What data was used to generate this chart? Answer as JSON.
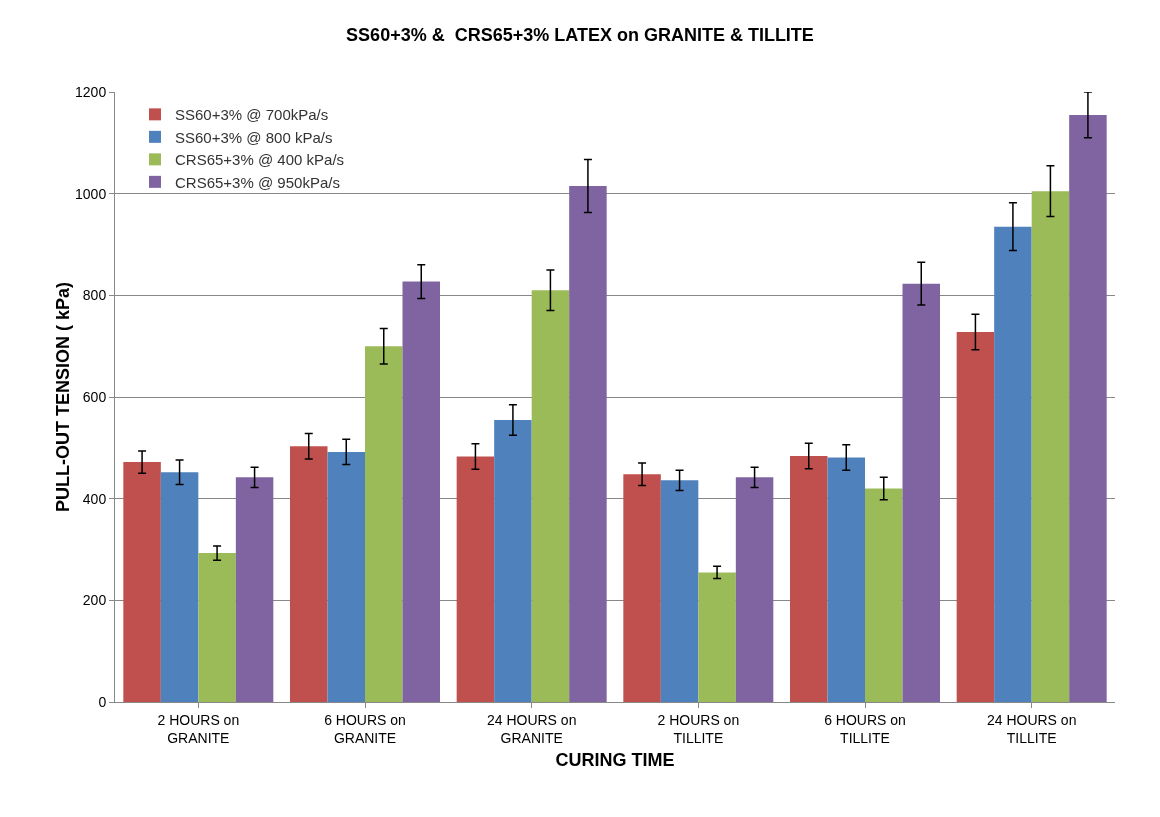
{
  "chart_data": {
    "type": "bar",
    "title": "SS60+3% &  CRS65+3% LATEX on GRANITE & TILLITE",
    "xlabel": "CURING TIME",
    "ylabel": "PULL-OUT TENSION ( kPa)",
    "categories": [
      "2 HOURS on GRANITE",
      "6 HOURS on GRANITE",
      "24 HOURS on GRANITE",
      "2 HOURS on TILLITE",
      "6 HOURS on TILLITE",
      "24 HOURS on TILLITE"
    ],
    "series": [
      {
        "name": "SS60+3% @ 700kPa/s",
        "color": "#c0504d",
        "values": [
          472,
          503,
          483,
          448,
          484,
          728
        ],
        "errors": [
          22,
          25,
          25,
          22,
          25,
          35
        ]
      },
      {
        "name": "SS60+3% @ 800 kPa/s",
        "color": "#4f81bd",
        "values": [
          452,
          492,
          555,
          436,
          481,
          935
        ],
        "errors": [
          24,
          25,
          30,
          20,
          25,
          47
        ]
      },
      {
        "name": "CRS65+3% @ 400 kPa/s",
        "color": "#9bbb59",
        "values": [
          293,
          700,
          810,
          255,
          420,
          1005
        ],
        "errors": [
          14,
          35,
          40,
          12,
          22,
          50
        ]
      },
      {
        "name": "CRS65+3% @ 950kPa/s",
        "color": "#8064a2",
        "values": [
          442,
          827,
          1015,
          442,
          823,
          1155
        ],
        "errors": [
          20,
          33,
          52,
          20,
          42,
          45
        ]
      }
    ],
    "ylim": [
      0,
      1200
    ],
    "yticks": [
      0,
      200,
      400,
      600,
      800,
      1000,
      1200
    ],
    "grid": "y",
    "legend": "top left"
  }
}
